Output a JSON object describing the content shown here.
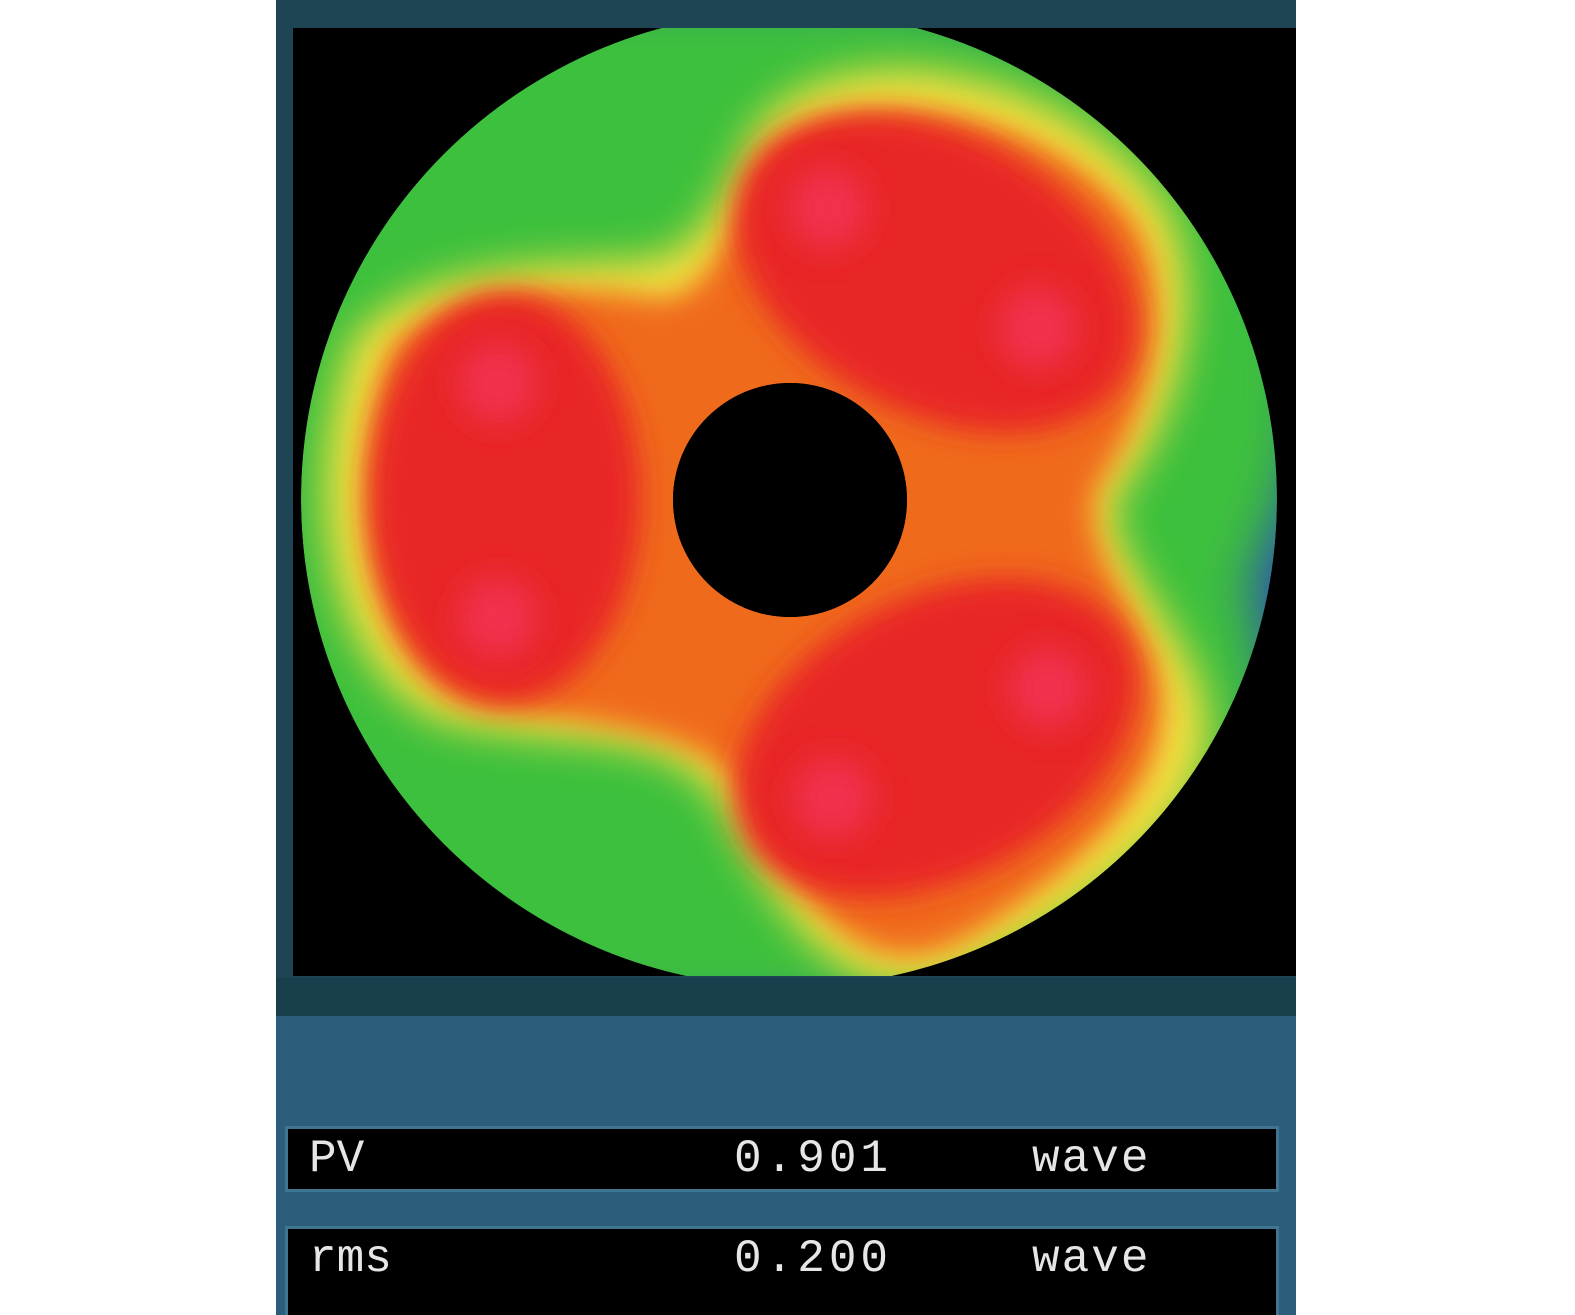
{
  "readouts": [
    {
      "label": "PV",
      "value": "0.901",
      "unit": "wave"
    },
    {
      "label": "rms",
      "value": "0.200",
      "unit": "wave"
    }
  ],
  "colormap": {
    "peak": "#f03050",
    "high": "#e82828",
    "mid_high": "#f06a1e",
    "mid": "#f4e040",
    "mid_low": "#3cc03c",
    "low": "#2840c0",
    "background": "#000000"
  },
  "panel_colors": {
    "frame": "#1f4554",
    "lower": "#2c5d7a",
    "row_border": "#3f7590"
  }
}
